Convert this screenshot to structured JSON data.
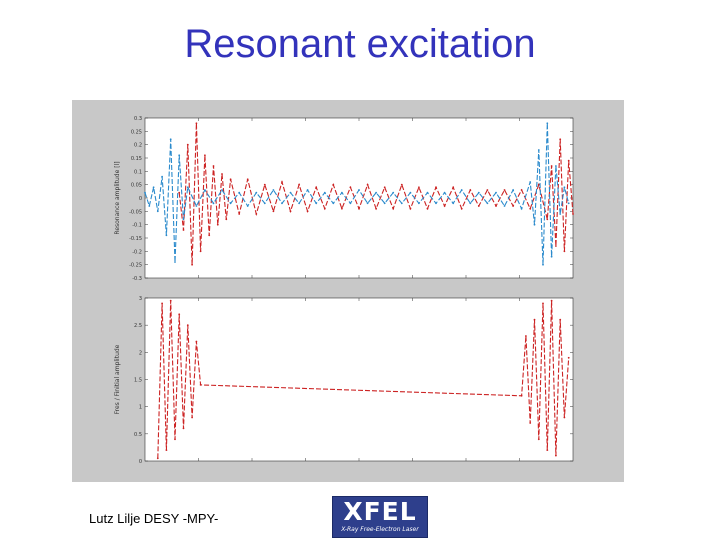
{
  "slide": {
    "title": "Resonant excitation",
    "footer": "Lutz Lilje   DESY -MPY-"
  },
  "logo": {
    "word": "XFEL",
    "subtitle": "X-Ray Free-Electron Laser"
  },
  "colors": {
    "title": "#3333bb",
    "panel_background": "#c8c8c8",
    "series_red": "#cc2222",
    "series_blue": "#2a8acc",
    "logo_background": "#2e3f8c"
  },
  "chart_data": [
    {
      "type": "line",
      "title": "",
      "xlabel": "",
      "ylabel": "Resonance amplitude [l]",
      "yticks": [
        "0.3",
        "0.25",
        "0.2",
        "0.15",
        "0.1",
        "0.05",
        "0",
        "-0.05",
        "-0.1",
        "-0.15",
        "-0.2",
        "-0.25",
        "-0.3"
      ],
      "ylim": [
        -0.3,
        0.3
      ],
      "xlim": [
        0,
        100
      ],
      "x_ticks_count": 8,
      "grid": false,
      "legend": "none",
      "series": [
        {
          "color": "#cc2222",
          "x": [
            8,
            9,
            10,
            11,
            12,
            13,
            14,
            15,
            16,
            17,
            18,
            19,
            20,
            22,
            24,
            26,
            28,
            30,
            32,
            34,
            36,
            38,
            40,
            42,
            44,
            46,
            48,
            50,
            52,
            54,
            56,
            58,
            60,
            62,
            64,
            66,
            68,
            70,
            72,
            74,
            76,
            78,
            80,
            82,
            84,
            86,
            88,
            90,
            92,
            94,
            95,
            96,
            97,
            98,
            99,
            100
          ],
          "y": [
            0.02,
            -0.12,
            0.2,
            -0.25,
            0.28,
            -0.2,
            0.16,
            -0.14,
            0.12,
            -0.1,
            0.09,
            -0.08,
            0.07,
            -0.06,
            0.07,
            -0.06,
            0.05,
            -0.05,
            0.06,
            -0.05,
            0.05,
            -0.05,
            0.04,
            -0.04,
            0.05,
            -0.04,
            0.04,
            -0.04,
            0.05,
            -0.04,
            0.04,
            -0.04,
            0.05,
            -0.04,
            0.04,
            -0.04,
            0.04,
            -0.03,
            0.04,
            -0.04,
            0.03,
            -0.03,
            0.03,
            -0.03,
            0.03,
            -0.03,
            0.03,
            -0.04,
            0.05,
            -0.08,
            0.12,
            -0.18,
            0.22,
            -0.2,
            0.14,
            -0.06
          ]
        },
        {
          "color": "#2a8acc",
          "x": [
            0,
            1,
            2,
            3,
            4,
            5,
            6,
            7,
            8,
            9,
            10,
            12,
            14,
            16,
            18,
            20,
            22,
            24,
            26,
            28,
            30,
            32,
            34,
            36,
            38,
            40,
            42,
            44,
            46,
            48,
            50,
            52,
            54,
            56,
            58,
            60,
            62,
            64,
            66,
            68,
            70,
            72,
            74,
            76,
            78,
            80,
            82,
            84,
            86,
            88,
            90,
            91,
            92,
            93,
            94,
            95,
            96,
            97,
            98,
            99
          ],
          "y": [
            0.02,
            -0.03,
            0.04,
            -0.05,
            0.08,
            -0.14,
            0.22,
            -0.24,
            0.16,
            -0.08,
            0.04,
            -0.03,
            0.03,
            -0.02,
            0.03,
            -0.02,
            0.02,
            -0.03,
            0.02,
            -0.02,
            0.03,
            -0.02,
            0.02,
            -0.02,
            0.03,
            -0.02,
            0.02,
            -0.02,
            0.02,
            -0.02,
            0.03,
            -0.02,
            0.02,
            -0.02,
            0.02,
            -0.02,
            0.02,
            -0.02,
            0.02,
            -0.02,
            0.02,
            -0.02,
            0.03,
            -0.02,
            0.02,
            -0.02,
            0.02,
            -0.03,
            0.03,
            -0.04,
            0.06,
            -0.1,
            0.18,
            -0.25,
            0.28,
            -0.22,
            0.12,
            -0.06,
            0.04,
            -0.02
          ]
        }
      ]
    },
    {
      "type": "line",
      "title": "",
      "xlabel": "",
      "ylabel": "Fres / Finitial amplitude",
      "yticks": [
        "3",
        "2.5",
        "2",
        "1.5",
        "1",
        "0.5",
        "0"
      ],
      "ylim": [
        0,
        3
      ],
      "xlim": [
        0,
        100
      ],
      "x_ticks_count": 8,
      "grid": false,
      "legend": "none",
      "series": [
        {
          "color": "#cc2222",
          "x": [
            3,
            4,
            5,
            6,
            7,
            8,
            9,
            10,
            11,
            12,
            13,
            88,
            89,
            90,
            91,
            92,
            93,
            94,
            95,
            96,
            97,
            98,
            99
          ],
          "y": [
            0.05,
            2.9,
            0.2,
            2.95,
            0.4,
            2.7,
            0.6,
            2.5,
            0.8,
            2.2,
            1.4,
            1.2,
            2.3,
            0.7,
            2.6,
            0.4,
            2.9,
            0.2,
            2.95,
            0.1,
            2.6,
            0.8,
            1.9
          ]
        }
      ]
    }
  ]
}
